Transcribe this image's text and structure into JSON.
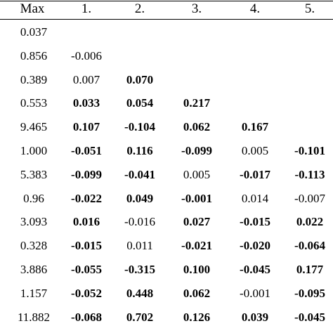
{
  "header": [
    "Max",
    "1.",
    "2.",
    "3.",
    "4.",
    "5."
  ],
  "rows": [
    {
      "max": "0.037",
      "cells": []
    },
    {
      "max": "0.856",
      "cells": [
        {
          "v": "-0.006",
          "b": false
        }
      ]
    },
    {
      "max": "0.389",
      "cells": [
        {
          "v": "0.007",
          "b": false
        },
        {
          "v": "0.070",
          "b": true
        }
      ]
    },
    {
      "max": "0.553",
      "cells": [
        {
          "v": "0.033",
          "b": true
        },
        {
          "v": "0.054",
          "b": true
        },
        {
          "v": "0.217",
          "b": true
        }
      ]
    },
    {
      "max": "9.465",
      "cells": [
        {
          "v": "0.107",
          "b": true
        },
        {
          "v": "-0.104",
          "b": true
        },
        {
          "v": "0.062",
          "b": true
        },
        {
          "v": "0.167",
          "b": true
        }
      ]
    },
    {
      "max": "1.000",
      "cells": [
        {
          "v": "-0.051",
          "b": true
        },
        {
          "v": "0.116",
          "b": true
        },
        {
          "v": "-0.099",
          "b": true
        },
        {
          "v": "0.005",
          "b": false
        },
        {
          "v": "-0.101",
          "b": true
        }
      ]
    },
    {
      "max": "5.383",
      "cells": [
        {
          "v": "-0.099",
          "b": true
        },
        {
          "v": "-0.041",
          "b": true
        },
        {
          "v": "0.005",
          "b": false
        },
        {
          "v": "-0.017",
          "b": true
        },
        {
          "v": "-0.113",
          "b": true
        }
      ]
    },
    {
      "max": "0.96",
      "cells": [
        {
          "v": "-0.022",
          "b": true
        },
        {
          "v": "0.049",
          "b": true
        },
        {
          "v": "-0.001",
          "b": true
        },
        {
          "v": "0.014",
          "b": false
        },
        {
          "v": "-0.007",
          "b": false
        }
      ]
    },
    {
      "max": "3.093",
      "cells": [
        {
          "v": "0.016",
          "b": true
        },
        {
          "v": "-0.016",
          "b": false
        },
        {
          "v": "0.027",
          "b": true
        },
        {
          "v": "-0.015",
          "b": true
        },
        {
          "v": "0.022",
          "b": true
        }
      ]
    },
    {
      "max": "0.328",
      "cells": [
        {
          "v": "-0.015",
          "b": true
        },
        {
          "v": "0.011",
          "b": false
        },
        {
          "v": "-0.021",
          "b": true
        },
        {
          "v": "-0.020",
          "b": true
        },
        {
          "v": "-0.064",
          "b": true
        }
      ]
    },
    {
      "max": "3.886",
      "cells": [
        {
          "v": "-0.055",
          "b": true
        },
        {
          "v": "-0.315",
          "b": true
        },
        {
          "v": "0.100",
          "b": true
        },
        {
          "v": "-0.045",
          "b": true
        },
        {
          "v": "0.177",
          "b": true
        }
      ]
    },
    {
      "max": "1.157",
      "cells": [
        {
          "v": "-0.052",
          "b": true
        },
        {
          "v": "0.448",
          "b": true
        },
        {
          "v": "0.062",
          "b": true
        },
        {
          "v": "-0.001",
          "b": false
        },
        {
          "v": "-0.095",
          "b": true
        }
      ]
    },
    {
      "max": "11.882",
      "cells": [
        {
          "v": "-0.068",
          "b": true
        },
        {
          "v": "0.702",
          "b": true
        },
        {
          "v": "0.126",
          "b": true
        },
        {
          "v": "0.039",
          "b": true
        },
        {
          "v": "-0.045",
          "b": true
        }
      ]
    }
  ]
}
